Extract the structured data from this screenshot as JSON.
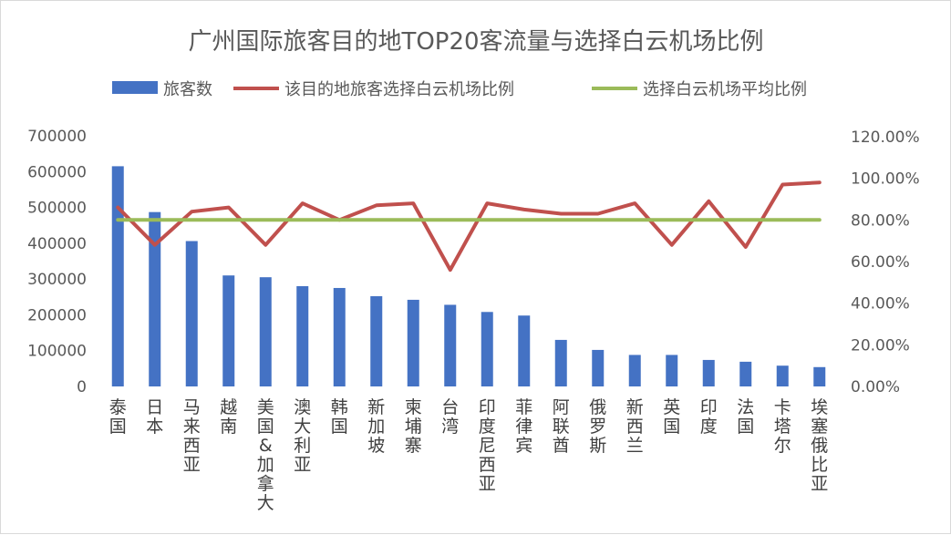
{
  "chart_data": {
    "type": "bar",
    "title": "广州国际旅客目的地TOP20客流量与选择白云机场比例",
    "legend": {
      "position": "top",
      "entries": [
        {
          "name": "旅客数",
          "color": "#4472c4",
          "kind": "bar"
        },
        {
          "name": "该目的地旅客选择白云机场比例",
          "color": "#c0504d",
          "kind": "line"
        },
        {
          "name": "选择白云机场平均比例",
          "color": "#9bbb59",
          "kind": "line"
        }
      ]
    },
    "categories": [
      "泰国",
      "日本",
      "马来西亚",
      "越南",
      "美国&加拿大",
      "澳大利亚",
      "韩国",
      "新加坡",
      "柬埔寨",
      "台湾",
      "印度尼西亚",
      "菲律宾",
      "阿联酋",
      "俄罗斯",
      "新西兰",
      "英国",
      "印度",
      "法国",
      "卡塔尔",
      "埃塞俄比亚"
    ],
    "series": [
      {
        "name": "旅客数",
        "axis": "left",
        "type": "bar",
        "values": [
          615000,
          487000,
          406000,
          310000,
          305000,
          280000,
          275000,
          252000,
          242000,
          228000,
          208000,
          198000,
          130000,
          102000,
          88000,
          88000,
          74000,
          69000,
          58000,
          54000
        ]
      },
      {
        "name": "该目的地旅客选择白云机场比例",
        "axis": "right",
        "type": "line",
        "values": [
          0.86,
          0.68,
          0.84,
          0.86,
          0.68,
          0.88,
          0.8,
          0.87,
          0.88,
          0.56,
          0.88,
          0.85,
          0.83,
          0.83,
          0.88,
          0.68,
          0.89,
          0.67,
          0.97,
          0.98
        ]
      },
      {
        "name": "选择白云机场平均比例",
        "axis": "right",
        "type": "line",
        "values": [
          0.8,
          0.8,
          0.8,
          0.8,
          0.8,
          0.8,
          0.8,
          0.8,
          0.8,
          0.8,
          0.8,
          0.8,
          0.8,
          0.8,
          0.8,
          0.8,
          0.8,
          0.8,
          0.8,
          0.8
        ]
      }
    ],
    "y_left": {
      "min": 0,
      "max": 700000,
      "ticks": [
        "0",
        "100000",
        "200000",
        "300000",
        "400000",
        "500000",
        "600000",
        "700000"
      ]
    },
    "y_right": {
      "min": 0,
      "max": 1.2,
      "ticks": [
        "0.00%",
        "20.00%",
        "40.00%",
        "60.00%",
        "80.00%",
        "100.00%",
        "120.00%"
      ]
    },
    "grid": false
  }
}
